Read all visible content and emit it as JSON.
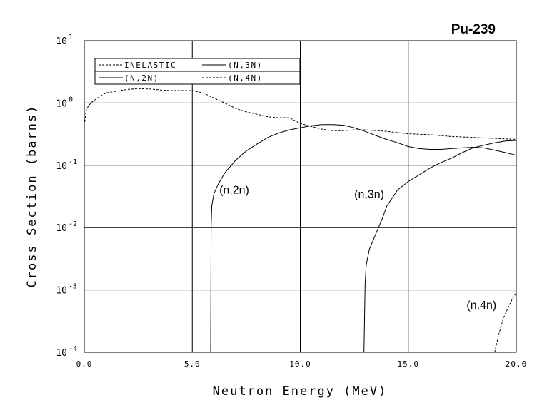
{
  "chart_data": {
    "type": "line",
    "title": "Pu-239",
    "xlabel": "Neutron Energy (MeV)",
    "ylabel": "Cross Section (barns)",
    "xlim": [
      0,
      20
    ],
    "ylim": [
      0.0001,
      10
    ],
    "yscale": "log",
    "grid": true,
    "legend_position": "top-left",
    "x_ticks": [
      {
        "value": 0,
        "label": "0.0"
      },
      {
        "value": 5,
        "label": "5.0"
      },
      {
        "value": 10,
        "label": "10.0"
      },
      {
        "value": 15,
        "label": "15.0"
      },
      {
        "value": 20,
        "label": "20.0"
      }
    ],
    "y_ticks": [
      {
        "value": 10,
        "base": "10",
        "exp": "1"
      },
      {
        "value": 1,
        "base": "10",
        "exp": "0"
      },
      {
        "value": 0.1,
        "base": "10",
        "exp": "-1"
      },
      {
        "value": 0.01,
        "base": "10",
        "exp": "-2"
      },
      {
        "value": 0.001,
        "base": "10",
        "exp": "-3"
      },
      {
        "value": 0.0001,
        "base": "10",
        "exp": "-4"
      }
    ],
    "series": [
      {
        "name": "INELASTIC",
        "style": "dashed",
        "x": [
          0.02,
          0.1,
          0.3,
          0.6,
          1.0,
          1.5,
          2.0,
          2.5,
          3.0,
          3.5,
          4.0,
          4.5,
          5.0,
          5.5,
          6.0,
          6.5,
          7.0,
          7.5,
          8.0,
          8.5,
          9.0,
          9.5,
          10.0,
          10.5,
          11.0,
          11.5,
          12.0,
          12.5,
          13.0,
          14.0,
          15.0,
          16.0,
          17.0,
          18.0,
          19.0,
          20.0
        ],
        "values": [
          0.5,
          0.8,
          1.0,
          1.2,
          1.45,
          1.55,
          1.65,
          1.7,
          1.68,
          1.62,
          1.58,
          1.58,
          1.58,
          1.45,
          1.2,
          1.0,
          0.82,
          0.72,
          0.66,
          0.6,
          0.58,
          0.58,
          0.47,
          0.42,
          0.38,
          0.36,
          0.36,
          0.37,
          0.37,
          0.35,
          0.32,
          0.31,
          0.29,
          0.28,
          0.27,
          0.26
        ]
      },
      {
        "name": "(N,2N)",
        "style": "solid",
        "x": [
          5.85,
          5.87,
          5.9,
          6.0,
          6.2,
          6.5,
          7.0,
          7.5,
          8.0,
          8.5,
          9.0,
          9.5,
          10.0,
          10.5,
          11.0,
          11.5,
          12.0,
          12.5,
          13.0,
          13.5,
          14.0,
          14.5,
          15.0,
          15.5,
          16.0,
          16.5,
          17.0,
          17.5,
          18.0,
          18.5,
          19.0,
          19.5,
          20.0
        ],
        "values": [
          0.0001,
          0.01,
          0.022,
          0.035,
          0.05,
          0.075,
          0.12,
          0.17,
          0.22,
          0.28,
          0.33,
          0.37,
          0.4,
          0.43,
          0.45,
          0.45,
          0.44,
          0.4,
          0.35,
          0.3,
          0.26,
          0.23,
          0.2,
          0.185,
          0.18,
          0.18,
          0.185,
          0.19,
          0.195,
          0.19,
          0.175,
          0.16,
          0.145
        ]
      },
      {
        "name": "(N,3N)",
        "style": "solid",
        "x": [
          12.95,
          12.98,
          13.0,
          13.05,
          13.2,
          13.5,
          13.8,
          14.0,
          14.5,
          15.0,
          15.5,
          16.0,
          16.5,
          17.0,
          17.5,
          18.0,
          18.5,
          19.0,
          19.5,
          20.0
        ],
        "values": [
          0.0001,
          0.0004,
          0.0012,
          0.0025,
          0.0045,
          0.008,
          0.014,
          0.022,
          0.04,
          0.055,
          0.07,
          0.09,
          0.11,
          0.13,
          0.16,
          0.19,
          0.21,
          0.23,
          0.245,
          0.25
        ]
      },
      {
        "name": "(N,4N)",
        "style": "dashed",
        "x": [
          19.0,
          19.2,
          19.4,
          19.6,
          19.8,
          20.0
        ],
        "values": [
          0.0001,
          0.0002,
          0.00035,
          0.0005,
          0.0007,
          0.0009
        ]
      }
    ],
    "annotations": [
      {
        "text": "(n,2n)",
        "x": 6.25,
        "y": 0.035
      },
      {
        "text": "(n,3n)",
        "x": 12.5,
        "y": 0.03
      },
      {
        "text": "(n,4n)",
        "x": 17.7,
        "y": 0.0005
      }
    ]
  }
}
